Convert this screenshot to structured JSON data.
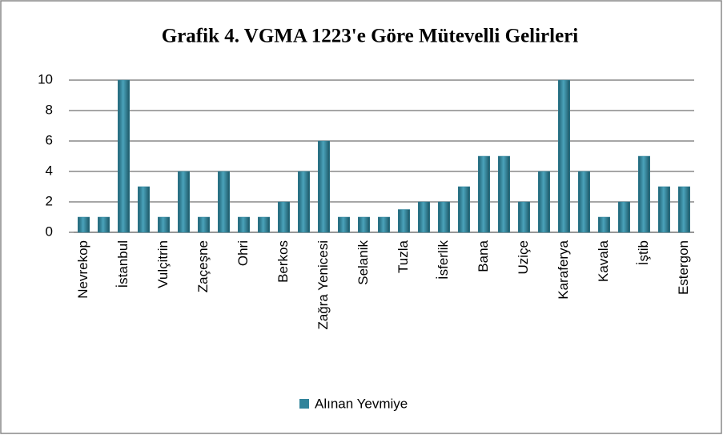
{
  "chart_data": {
    "type": "bar",
    "title": "Grafik 4. VGMA 1223'e Göre Mütevelli Gelirleri",
    "categories": [
      "Nevrekop",
      null,
      "İstanbul",
      null,
      "Vulçitrin",
      null,
      "Zaçeşne",
      null,
      "Ohri",
      null,
      "Berkos",
      null,
      "Zağra Yenicesi",
      null,
      "Selanik",
      null,
      "Tuzla",
      null,
      "İsferlik",
      null,
      "Bana",
      null,
      "Uziçe",
      null,
      "Karaferya",
      null,
      "Kavala",
      null,
      "İştib",
      null,
      "Estergon"
    ],
    "series": [
      {
        "name": "Alınan Yevmiye",
        "color": "#31849b",
        "values": [
          1,
          1,
          10,
          3,
          1,
          4,
          1,
          4,
          1,
          1,
          2,
          4,
          6,
          1,
          1,
          1,
          1.5,
          2,
          2,
          3,
          5,
          5,
          2,
          4,
          10,
          4,
          1,
          2,
          5,
          3,
          3
        ]
      }
    ],
    "ylim": [
      0,
      10
    ],
    "yticks": [
      0,
      2,
      4,
      6,
      8,
      10
    ],
    "grid": true,
    "legend": "bottom"
  }
}
